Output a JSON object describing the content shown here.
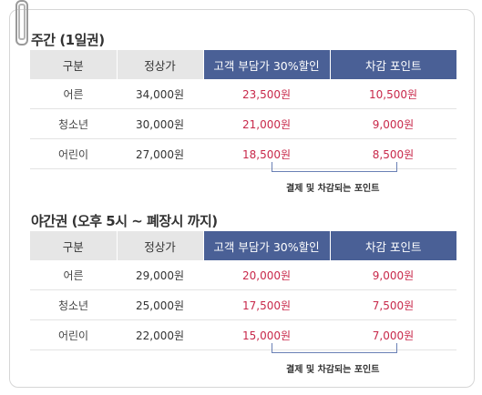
{
  "columns": {
    "category": "구분",
    "regular": "정상가",
    "discount": "고객 부담가 30%할인",
    "deduction": "차감 포인트"
  },
  "weekly": {
    "title": "주간 (1일권)",
    "rows": [
      {
        "category": "어른",
        "regular": "34,000원",
        "discount": "23,500원",
        "deduction": "10,500원"
      },
      {
        "category": "청소년",
        "regular": "30,000원",
        "discount": "21,000원",
        "deduction": "9,000원"
      },
      {
        "category": "어린이",
        "regular": "27,000원",
        "discount": "18,500원",
        "deduction": "8,500원"
      }
    ],
    "note": "결제 및 차감되는 포인트"
  },
  "night": {
    "title": "야간권 (오후 5시 ~ 폐장시 까지)",
    "rows": [
      {
        "category": "어른",
        "regular": "29,000원",
        "discount": "20,000원",
        "deduction": "9,000원"
      },
      {
        "category": "청소년",
        "regular": "25,000원",
        "discount": "17,500원",
        "deduction": "7,500원"
      },
      {
        "category": "어린이",
        "regular": "22,000원",
        "discount": "15,000원",
        "deduction": "7,000원"
      }
    ],
    "note": "결제 및 차감되는 포인트"
  }
}
